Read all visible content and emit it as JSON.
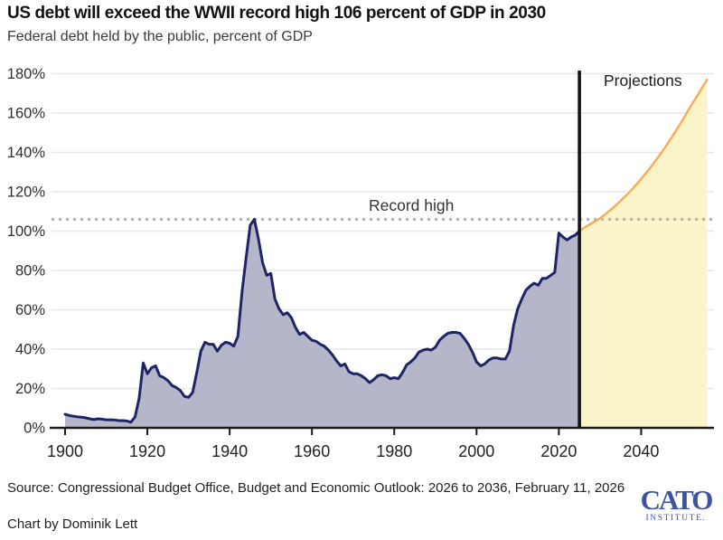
{
  "header": {
    "title": "US debt will exceed the WWII record high 106 percent of GDP in 2030",
    "subtitle": "Federal debt held by the public, percent of GDP"
  },
  "chart_data": {
    "type": "area",
    "title": "US debt will exceed the WWII record high 106 percent of GDP in 2030",
    "subtitle": "Federal debt held by the public, percent of GDP",
    "xlabel": "",
    "ylabel": "Federal debt held by the public, percent of GDP",
    "xlim": [
      1900,
      2056
    ],
    "ylim": [
      0,
      186
    ],
    "x_ticks": [
      1900,
      1920,
      1940,
      1960,
      1980,
      2000,
      2020,
      2040
    ],
    "y_ticks": [
      0,
      20,
      40,
      60,
      80,
      100,
      120,
      140,
      160,
      180
    ],
    "y_tick_suffix": "%",
    "grid": "horizontal",
    "legend_position": "none",
    "record_high": {
      "label": "Record high",
      "value": 106,
      "line_color": "#b4b4b4"
    },
    "projections": {
      "label": "Projections",
      "start_year": 2025,
      "divider_color": "#141414"
    },
    "series": [
      {
        "name": "historical",
        "line_color": "#1e2564",
        "fill_color": "#b5b6c9",
        "points": [
          [
            1900,
            6.9
          ],
          [
            1901,
            6.3
          ],
          [
            1902,
            5.9
          ],
          [
            1903,
            5.6
          ],
          [
            1904,
            5.4
          ],
          [
            1905,
            5.1
          ],
          [
            1906,
            4.6
          ],
          [
            1907,
            4.2
          ],
          [
            1908,
            4.6
          ],
          [
            1909,
            4.4
          ],
          [
            1910,
            4.1
          ],
          [
            1911,
            4.1
          ],
          [
            1912,
            4.0
          ],
          [
            1913,
            3.7
          ],
          [
            1914,
            3.7
          ],
          [
            1915,
            3.5
          ],
          [
            1916,
            2.9
          ],
          [
            1917,
            5.5
          ],
          [
            1918,
            15.0
          ],
          [
            1919,
            33.0
          ],
          [
            1920,
            27.5
          ],
          [
            1921,
            30.5
          ],
          [
            1922,
            31.5
          ],
          [
            1923,
            26.5
          ],
          [
            1924,
            25.5
          ],
          [
            1925,
            24.0
          ],
          [
            1926,
            21.5
          ],
          [
            1927,
            20.5
          ],
          [
            1928,
            19.0
          ],
          [
            1929,
            16.0
          ],
          [
            1930,
            15.5
          ],
          [
            1931,
            18.0
          ],
          [
            1932,
            28.0
          ],
          [
            1933,
            39.0
          ],
          [
            1934,
            43.5
          ],
          [
            1935,
            42.5
          ],
          [
            1936,
            42.5
          ],
          [
            1937,
            39.0
          ],
          [
            1938,
            42.0
          ],
          [
            1939,
            43.5
          ],
          [
            1940,
            43.0
          ],
          [
            1941,
            41.5
          ],
          [
            1942,
            46.5
          ],
          [
            1943,
            69.0
          ],
          [
            1944,
            86.5
          ],
          [
            1945,
            103.0
          ],
          [
            1946,
            106.0
          ],
          [
            1947,
            96.0
          ],
          [
            1948,
            84.0
          ],
          [
            1949,
            77.5
          ],
          [
            1950,
            78.5
          ],
          [
            1951,
            65.5
          ],
          [
            1952,
            60.5
          ],
          [
            1953,
            57.5
          ],
          [
            1954,
            58.5
          ],
          [
            1955,
            56.0
          ],
          [
            1956,
            51.0
          ],
          [
            1957,
            47.5
          ],
          [
            1958,
            48.5
          ],
          [
            1959,
            46.5
          ],
          [
            1960,
            44.5
          ],
          [
            1961,
            44.0
          ],
          [
            1962,
            42.5
          ],
          [
            1963,
            41.5
          ],
          [
            1964,
            39.5
          ],
          [
            1965,
            37.0
          ],
          [
            1966,
            34.0
          ],
          [
            1967,
            31.5
          ],
          [
            1968,
            32.5
          ],
          [
            1969,
            28.5
          ],
          [
            1970,
            27.5
          ],
          [
            1971,
            27.5
          ],
          [
            1972,
            26.5
          ],
          [
            1973,
            25.0
          ],
          [
            1974,
            23.0
          ],
          [
            1975,
            24.5
          ],
          [
            1976,
            26.5
          ],
          [
            1977,
            27.0
          ],
          [
            1978,
            26.5
          ],
          [
            1979,
            25.0
          ],
          [
            1980,
            25.5
          ],
          [
            1981,
            25.0
          ],
          [
            1982,
            28.0
          ],
          [
            1983,
            32.0
          ],
          [
            1984,
            33.5
          ],
          [
            1985,
            35.5
          ],
          [
            1986,
            38.5
          ],
          [
            1987,
            39.5
          ],
          [
            1988,
            40.0
          ],
          [
            1989,
            39.5
          ],
          [
            1990,
            41.0
          ],
          [
            1991,
            44.5
          ],
          [
            1992,
            46.5
          ],
          [
            1993,
            48.0
          ],
          [
            1994,
            48.5
          ],
          [
            1995,
            48.5
          ],
          [
            1996,
            48.0
          ],
          [
            1997,
            45.5
          ],
          [
            1998,
            42.5
          ],
          [
            1999,
            38.5
          ],
          [
            2000,
            33.5
          ],
          [
            2001,
            31.5
          ],
          [
            2002,
            32.5
          ],
          [
            2003,
            34.5
          ],
          [
            2004,
            35.5
          ],
          [
            2005,
            35.5
          ],
          [
            2006,
            35.0
          ],
          [
            2007,
            35.0
          ],
          [
            2008,
            39.0
          ],
          [
            2009,
            52.0
          ],
          [
            2010,
            60.5
          ],
          [
            2011,
            65.5
          ],
          [
            2012,
            70.0
          ],
          [
            2013,
            72.0
          ],
          [
            2014,
            73.5
          ],
          [
            2015,
            72.5
          ],
          [
            2016,
            76.0
          ],
          [
            2017,
            76.0
          ],
          [
            2018,
            77.5
          ],
          [
            2019,
            79.0
          ],
          [
            2020,
            99.0
          ],
          [
            2021,
            97.0
          ],
          [
            2022,
            95.5
          ],
          [
            2023,
            97.0
          ],
          [
            2024,
            98.0
          ],
          [
            2025,
            100.0
          ]
        ]
      },
      {
        "name": "projection",
        "line_color": "#f7ac55",
        "fill_color": "#fbf4c8",
        "points": [
          [
            2025,
            100.0
          ],
          [
            2026,
            101.5
          ],
          [
            2027,
            102.8
          ],
          [
            2028,
            104.0
          ],
          [
            2029,
            105.2
          ],
          [
            2030,
            106.5
          ],
          [
            2031,
            108.1
          ],
          [
            2032,
            109.8
          ],
          [
            2033,
            111.6
          ],
          [
            2034,
            113.4
          ],
          [
            2035,
            115.4
          ],
          [
            2036,
            117.4
          ],
          [
            2038,
            121.7
          ],
          [
            2040,
            126.5
          ],
          [
            2042,
            131.6
          ],
          [
            2044,
            137.2
          ],
          [
            2046,
            143.1
          ],
          [
            2048,
            149.5
          ],
          [
            2050,
            156.2
          ],
          [
            2052,
            163.4
          ],
          [
            2054,
            170.0
          ],
          [
            2056,
            177.0
          ]
        ]
      }
    ]
  },
  "footer": {
    "source": "Source: Congressional Budget Office, Budget and Economic Outlook: 2026 to 2036, February 11, 2026",
    "credit": "Chart by Dominik Lett",
    "logo": {
      "name": "CATO",
      "subname": "INSTITUTE."
    }
  }
}
